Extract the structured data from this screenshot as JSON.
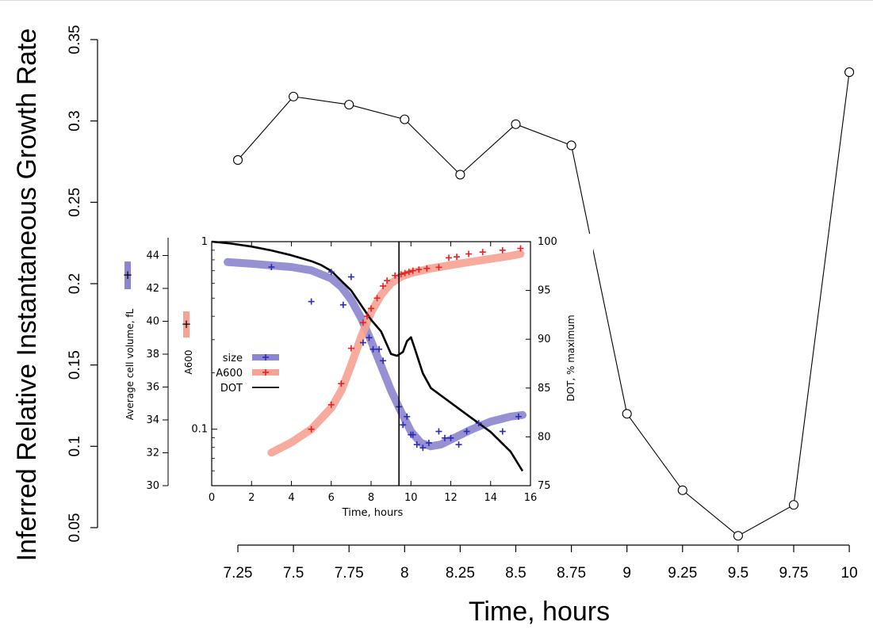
{
  "chart_data": [
    {
      "type": "line",
      "xlabel": "Time, hours",
      "ylabel": "Inferred Relative Instantaneous Growth Rate",
      "xlim": [
        7.25,
        10
      ],
      "ylim": [
        0.05,
        0.35
      ],
      "x_ticks": [
        "7.25",
        "7.5",
        "7.75",
        "8",
        "8.25",
        "8.5",
        "8.75",
        "9",
        "9.25",
        "9.5",
        "9.75",
        "10"
      ],
      "y_ticks": [
        "0.05",
        "0.1",
        "0.15",
        "0.2",
        "0.25",
        "0.3",
        "0.35"
      ],
      "marker": "open-circle",
      "grid": false,
      "series": [
        {
          "x": [
            7.25,
            7.5,
            7.75,
            8,
            8.25,
            8.5,
            8.75,
            9,
            9.25,
            9.5,
            9.75,
            10
          ],
          "values": [
            0.276,
            0.315,
            0.31,
            0.301,
            0.267,
            0.298,
            0.285,
            0.12,
            0.073,
            0.045,
            0.064,
            0.33
          ]
        }
      ]
    },
    {
      "type": "line",
      "xlabel": "Time, hours",
      "ylabel_left": "Average cell volume, fL",
      "ylabel_left2": "A600",
      "ylabel_right": "DOT, % maximum",
      "xlim": [
        0,
        16
      ],
      "x_ticks": [
        "0",
        "2",
        "4",
        "6",
        "8",
        "10",
        "12",
        "14",
        "16"
      ],
      "y_ticks_volume": [
        "30",
        "32",
        "34",
        "36",
        "38",
        "40",
        "42",
        "44"
      ],
      "y_ticks_a600": [
        "0.1",
        "1"
      ],
      "y_ticks_dot": [
        "75",
        "80",
        "85",
        "90",
        "95",
        "100"
      ],
      "ylim_volume": [
        30,
        44.5
      ],
      "ylim_a600_log": [
        0.05,
        1
      ],
      "ylim_dot": [
        75,
        100
      ],
      "vertical_line_x": 9.4,
      "legend_position": "center-left",
      "series": [
        {
          "name": "size",
          "color": "#2b2bb0",
          "fit_color": "#8c85cf",
          "x": [
            3,
            5,
            6,
            6.6,
            7,
            7.6,
            7.9,
            8.1,
            8.4,
            8.6,
            9.4,
            9.6,
            9.8,
            10,
            10.1,
            10.3,
            10.6,
            10.9,
            11.4,
            11.7,
            12,
            12.4,
            12.8,
            13.4,
            14.6,
            15.4
          ],
          "values": [
            43.3,
            41.2,
            43,
            41,
            42.7,
            38.7,
            39,
            38.3,
            38.3,
            37.6,
            34.8,
            33.7,
            34.2,
            33.1,
            33.1,
            32.5,
            32.3,
            32.6,
            33.3,
            32.9,
            32.9,
            32.5,
            33.3,
            33.8,
            33.3,
            34.2
          ],
          "fit_x": [
            0.8,
            2,
            3,
            4,
            5,
            6,
            6.5,
            7,
            7.5,
            8,
            8.5,
            9,
            9.5,
            10,
            10.5,
            11,
            11.5,
            12,
            12.5,
            13,
            14,
            15,
            15.6
          ],
          "fit_values": [
            43.6,
            43.5,
            43.4,
            43.3,
            43.1,
            42.6,
            42.1,
            41.3,
            40.2,
            38.8,
            37.3,
            35.8,
            34.5,
            33.3,
            32.6,
            32.4,
            32.5,
            32.8,
            33.1,
            33.4,
            33.9,
            34.2,
            34.3
          ]
        },
        {
          "name": "A600",
          "color": "#e82020",
          "fit_color": "#f6a294",
          "x": [
            5,
            6,
            6.5,
            7,
            7.6,
            7.8,
            8,
            8.3,
            8.6,
            8.8,
            9.2,
            9.5,
            9.7,
            9.9,
            10.1,
            10.4,
            10.8,
            11.4,
            11.9,
            12.3,
            12.9,
            13.6,
            14.6,
            15.5
          ],
          "values": [
            0.1,
            0.135,
            0.175,
            0.27,
            0.37,
            0.4,
            0.44,
            0.5,
            0.58,
            0.62,
            0.66,
            0.67,
            0.68,
            0.69,
            0.7,
            0.71,
            0.72,
            0.73,
            0.82,
            0.83,
            0.86,
            0.88,
            0.9,
            0.92
          ],
          "fit_x": [
            3,
            4,
            5,
            6,
            6.5,
            7,
            7.5,
            8,
            8.5,
            9,
            9.5,
            10,
            11,
            12,
            13,
            14,
            15,
            15.5
          ],
          "fit_values": [
            0.075,
            0.085,
            0.1,
            0.13,
            0.16,
            0.22,
            0.31,
            0.42,
            0.52,
            0.6,
            0.65,
            0.68,
            0.72,
            0.75,
            0.78,
            0.81,
            0.84,
            0.86
          ]
        },
        {
          "name": "DOT",
          "color": "#000000",
          "x": [
            0,
            1,
            2,
            3,
            4,
            5,
            5.5,
            6,
            6.5,
            7,
            7.5,
            8,
            8.5,
            9,
            9.3,
            9.6,
            9.8,
            10,
            10.2,
            10.6,
            11,
            12,
            13,
            14,
            15,
            15.6
          ],
          "values": [
            100,
            99.8,
            99.5,
            99.1,
            98.6,
            98,
            97.6,
            97,
            96,
            95,
            93.5,
            92,
            90.8,
            88.5,
            88.3,
            88.7,
            89.8,
            90.2,
            89,
            86.5,
            85,
            83.5,
            82,
            80.5,
            78.5,
            76.5
          ]
        }
      ]
    }
  ]
}
